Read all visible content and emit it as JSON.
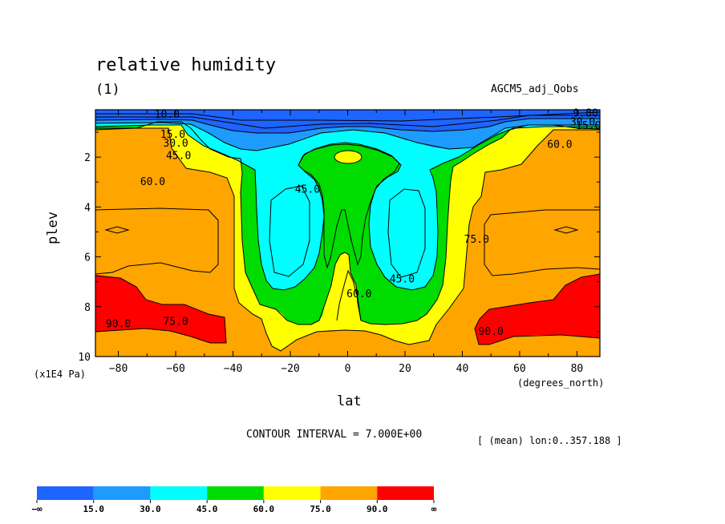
{
  "chart_data": {
    "type": "heatmap",
    "title": "relative humidity",
    "subtitle": "(1)",
    "dataset": "AGCM5_adj_Qobs",
    "xlabel": "lat",
    "ylabel": "plev",
    "x_unit": "(degrees_north)",
    "y_unit": "(x1E4 Pa)",
    "xlim": [
      -88,
      88
    ],
    "ylim": [
      10,
      0.1
    ],
    "x_ticks": [
      "−80",
      "−60",
      "−40",
      "−20",
      "0",
      "20",
      "40",
      "60",
      "80"
    ],
    "y_ticks": [
      "2",
      "4",
      "6",
      "8",
      "10"
    ],
    "contour_interval": "CONTOUR INTERVAL = 7.000E+00",
    "mean_note": "[ (mean) lon:0..357.188 ]",
    "colorbar": {
      "bounds": [
        "−∞",
        "15.0",
        "30.0",
        "45.0",
        "60.0",
        "75.0",
        "90.0",
        "∞"
      ],
      "colors": [
        "#1e64ff",
        "#1e9bff",
        "#00ffff",
        "#00dc00",
        "#ffff00",
        "#ffa500",
        "#ff0000"
      ]
    },
    "contour_labels": [
      {
        "text": "10.0",
        "lat": -63,
        "plev": 0.3
      },
      {
        "text": "15.0",
        "lat": -61,
        "plev": 1.1
      },
      {
        "text": "30.0",
        "lat": -60,
        "plev": 1.45
      },
      {
        "text": "45.0",
        "lat": -59,
        "plev": 1.95
      },
      {
        "text": "60.0",
        "lat": -68,
        "plev": 3.0
      },
      {
        "text": "45.0",
        "lat": -14,
        "plev": 3.3
      },
      {
        "text": "45.0",
        "lat": 19,
        "plev": 6.9
      },
      {
        "text": "60.0",
        "lat": 4,
        "plev": 7.5
      },
      {
        "text": "75.0",
        "lat": -60,
        "plev": 8.6
      },
      {
        "text": "90.0",
        "lat": -80,
        "plev": 8.7
      },
      {
        "text": "60.0",
        "lat": 74,
        "plev": 1.5
      },
      {
        "text": "30.0",
        "lat": 82,
        "plev": 0.6
      },
      {
        "text": "15.0",
        "lat": 84,
        "plev": 0.75
      },
      {
        "text": "9.80",
        "lat": 83,
        "plev": 0.25
      },
      {
        "text": "75.0",
        "lat": 45,
        "plev": 5.3
      },
      {
        "text": "90.0",
        "lat": 50,
        "plev": 9.0
      }
    ]
  }
}
